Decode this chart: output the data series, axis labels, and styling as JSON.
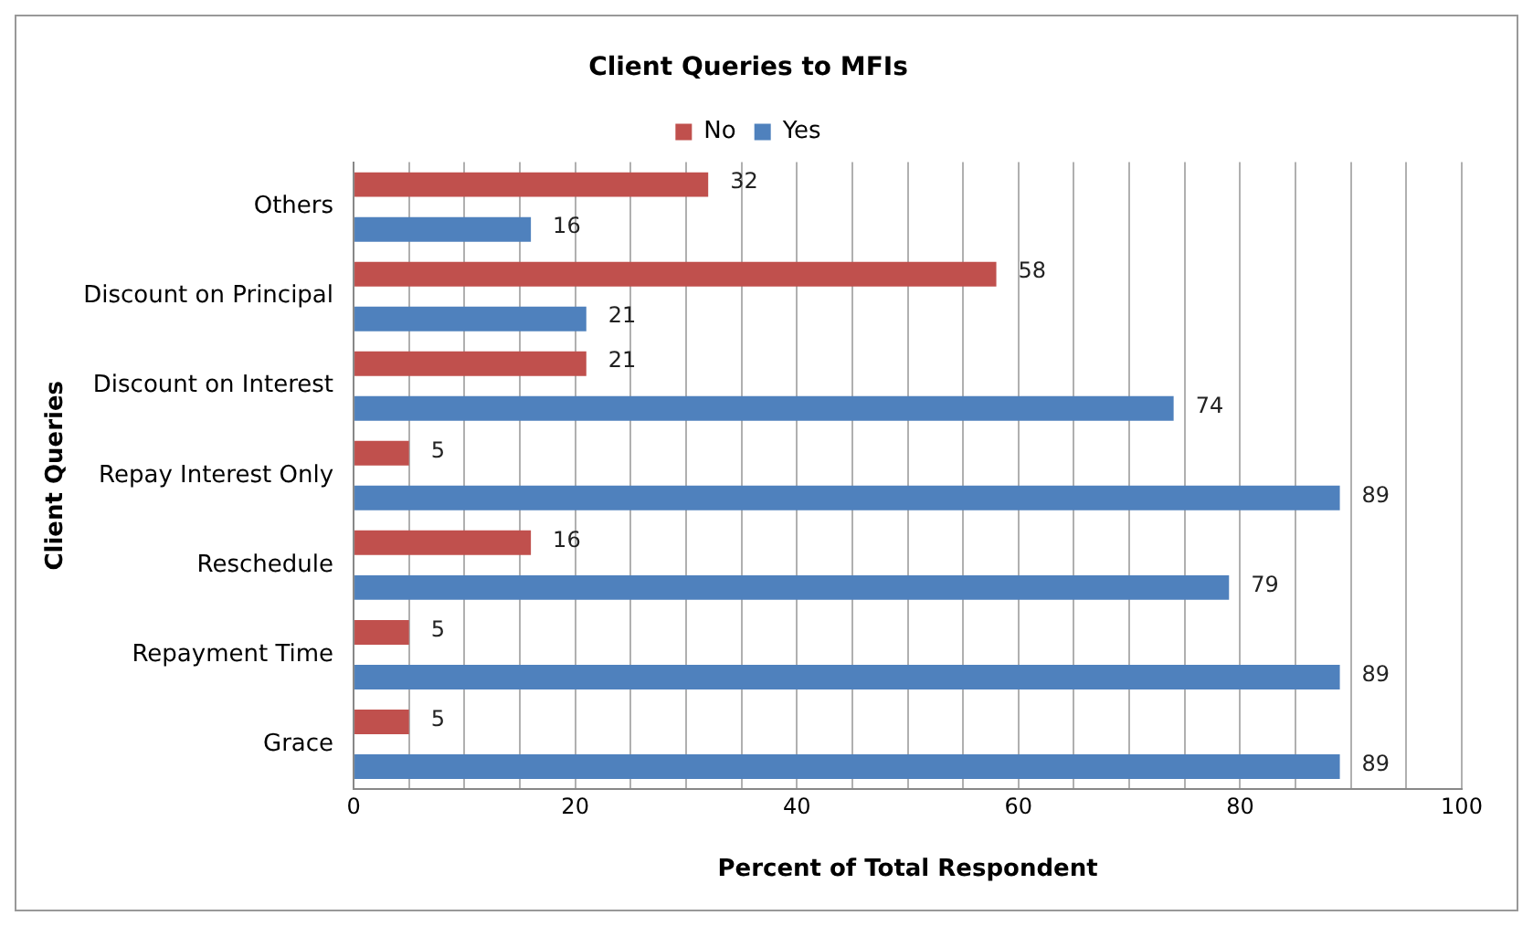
{
  "chart_data": {
    "type": "bar",
    "orientation": "horizontal",
    "title": "Client Queries to MFIs",
    "xlabel": "Percent of Total Respondent",
    "ylabel": "Client Queries",
    "categories": [
      "Others",
      "Discount on Principal",
      "Discount on Interest",
      "Repay Interest Only",
      "Reschedule",
      "Repayment Time",
      "Grace"
    ],
    "series": [
      {
        "name": "No",
        "color": "#c0504d",
        "values": [
          32,
          58,
          21,
          5,
          16,
          5,
          5
        ]
      },
      {
        "name": "Yes",
        "color": "#4f81bd",
        "values": [
          16,
          21,
          74,
          89,
          79,
          89,
          89
        ]
      }
    ],
    "xlim": [
      0,
      100
    ],
    "xticks": [
      0,
      {
        "value": 5,
        "label": null
      },
      {
        "value": 10,
        "label": null
      },
      {
        "value": 15,
        "label": null
      },
      20,
      {
        "value": 25,
        "label": null
      },
      {
        "value": 30,
        "label": null
      },
      {
        "value": 35,
        "label": null
      },
      40,
      {
        "value": 45,
        "label": null
      },
      {
        "value": 50,
        "label": null
      },
      {
        "value": 55,
        "label": null
      },
      60,
      {
        "value": 65,
        "label": null
      },
      {
        "value": 70,
        "label": null
      },
      {
        "value": 75,
        "label": null
      },
      80,
      {
        "value": 85,
        "label": null
      },
      {
        "value": 90,
        "label": null
      },
      {
        "value": 95,
        "label": null
      },
      100
    ],
    "grid": "x",
    "legend": "top",
    "data_labels": true
  }
}
